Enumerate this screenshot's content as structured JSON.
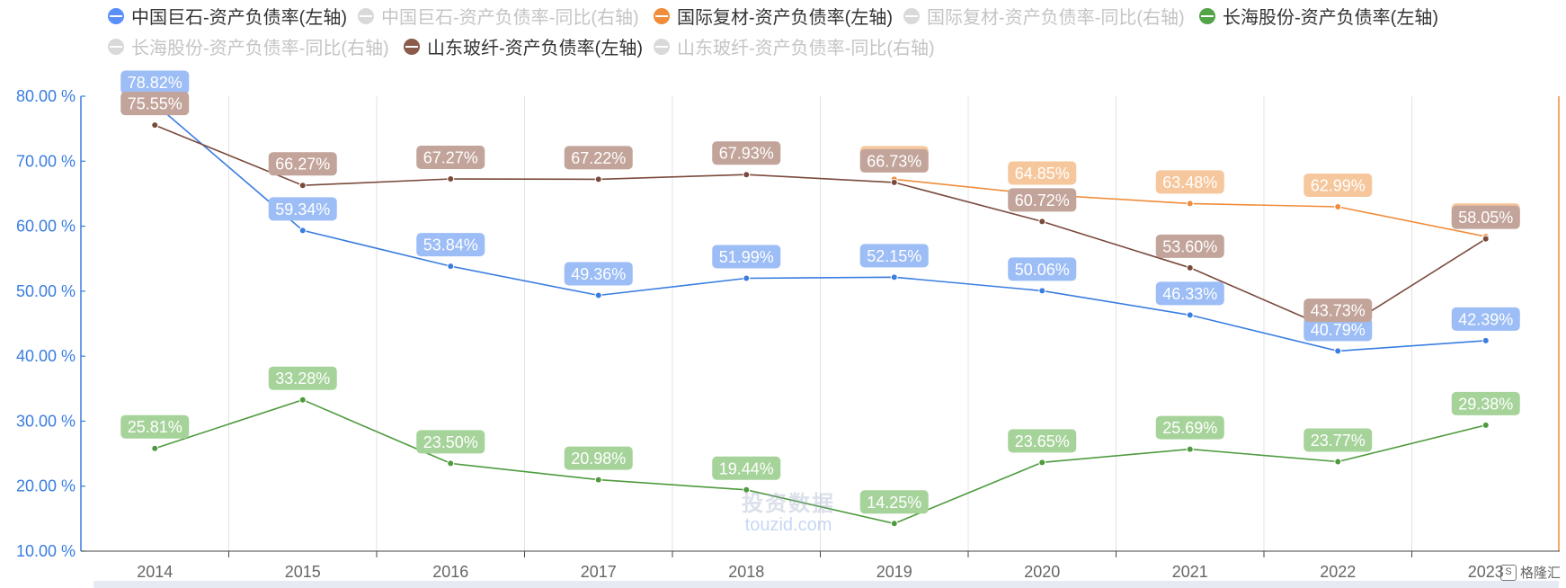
{
  "legend": [
    {
      "name": "中国巨石-资产负债率(左轴)",
      "color": "#5b8ff9",
      "active": true
    },
    {
      "name": "中国巨石-资产负债率-同比(右轴)",
      "color": "#cccccc",
      "active": false
    },
    {
      "name": "国际复材-资产负债率(左轴)",
      "color": "#f08c3a",
      "active": true
    },
    {
      "name": "国际复材-资产负债率-同比(右轴)",
      "color": "#cccccc",
      "active": false
    },
    {
      "name": "长海股份-资产负债率(左轴)",
      "color": "#52a447",
      "active": true
    },
    {
      "name": "长海股份-资产负债率-同比(右轴)",
      "color": "#cccccc",
      "active": false
    },
    {
      "name": "山东玻纤-资产负债率(左轴)",
      "color": "#8b5a4a",
      "active": true
    },
    {
      "name": "山东玻纤-资产负债率-同比(右轴)",
      "color": "#cccccc",
      "active": false
    }
  ],
  "watermark": {
    "cn": "投资数据",
    "en": "touzid.com"
  },
  "brand": {
    "logo": "S",
    "text": "格隆汇"
  },
  "chart_data": {
    "type": "line",
    "categories": [
      "2014",
      "2015",
      "2016",
      "2017",
      "2018",
      "2019",
      "2020",
      "2021",
      "2022",
      "2023"
    ],
    "ylim": [
      10,
      80
    ],
    "yticks": [
      10,
      20,
      30,
      40,
      50,
      60,
      70,
      80
    ],
    "ytick_labels": [
      "10.00 %",
      "20.00 %",
      "30.00 %",
      "40.00 %",
      "50.00 %",
      "60.00 %",
      "70.00 %",
      "80.00 %"
    ],
    "grid": "vertical",
    "legend_position": "top",
    "axis_color": "#3a7de0",
    "right_axis_color": "#f08c3a",
    "series": [
      {
        "name": "中国巨石-资产负债率(左轴)",
        "color": "#3a7de0",
        "label_bg": "#9cbdf5",
        "values": [
          78.82,
          59.34,
          53.84,
          49.36,
          51.99,
          52.15,
          50.06,
          46.33,
          40.79,
          42.39
        ],
        "labels": [
          "78.82%",
          "59.34%",
          "53.84%",
          "49.36%",
          "51.99%",
          "52.15%",
          "50.06%",
          "46.33%",
          "40.79%",
          "42.39%"
        ]
      },
      {
        "name": "国际复材-资产负债率(左轴)",
        "color": "#f08c3a",
        "label_bg": "#f6c79c",
        "values": [
          null,
          null,
          null,
          null,
          null,
          67.22,
          64.85,
          63.48,
          62.99,
          58.4
        ],
        "labels": [
          "",
          "",
          "",
          "",
          "",
          "67.22%",
          "64.85%",
          "63.48%",
          "62.99%",
          "58.40%"
        ]
      },
      {
        "name": "长海股份-资产负债率(左轴)",
        "color": "#4e9a3e",
        "label_bg": "#a6d39a",
        "values": [
          25.81,
          33.28,
          23.5,
          20.98,
          19.44,
          14.25,
          23.65,
          25.69,
          23.77,
          29.38
        ],
        "labels": [
          "25.81%",
          "33.28%",
          "23.50%",
          "20.98%",
          "19.44%",
          "14.25%",
          "23.65%",
          "25.69%",
          "23.77%",
          "29.38%"
        ]
      },
      {
        "name": "山东玻纤-资产负债率(左轴)",
        "color": "#7a4a3c",
        "label_bg": "#c2a49a",
        "values": [
          75.55,
          66.27,
          67.27,
          67.22,
          67.93,
          66.73,
          60.72,
          53.6,
          43.73,
          58.05
        ],
        "labels": [
          "75.55%",
          "66.27%",
          "67.27%",
          "67.22%",
          "67.93%",
          "66.73%",
          "60.72%",
          "53.60%",
          "43.73%",
          "58.05%"
        ]
      }
    ]
  }
}
